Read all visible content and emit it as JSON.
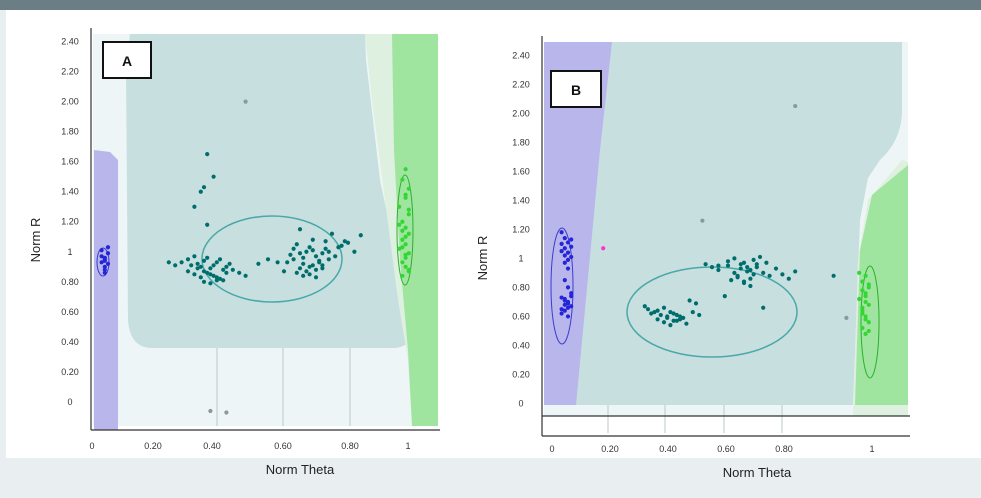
{
  "chart_data": [
    {
      "type": "scatter",
      "panel_label": "A",
      "xlabel": "Norm Theta",
      "ylabel": "Norm R",
      "xlim": [
        0,
        1.1
      ],
      "ylim": [
        -0.1,
        2.45
      ],
      "x_ticks": [
        "0",
        "0.20",
        "0.40",
        "0.60",
        "0.80",
        "1"
      ],
      "y_ticks": [
        "0",
        "0.20",
        "0.40",
        "0.60",
        "0.80",
        "1",
        "1.20",
        "1.40",
        "1.60",
        "1.80",
        "2.00",
        "2.20",
        "2.40"
      ],
      "series": [
        {
          "color": "#2424d8",
          "x": [
            0.03,
            0.04,
            0.05,
            0.04,
            0.03,
            0.05,
            0.04,
            0.04,
            0.03,
            0.05,
            0.04,
            0.04
          ],
          "y": [
            0.93,
            0.96,
            0.99,
            0.88,
            1.01,
            0.92,
            0.95,
            0.9,
            0.97,
            1.03,
            0.86,
            0.94
          ]
        },
        {
          "color": "#006d6d",
          "x": [
            0.36,
            0.38,
            0.34,
            0.35,
            0.32,
            0.36,
            0.28,
            0.3,
            0.32,
            0.33,
            0.34,
            0.35,
            0.36,
            0.37,
            0.38,
            0.39,
            0.4,
            0.41,
            0.42,
            0.43,
            0.3,
            0.32,
            0.34,
            0.36,
            0.38,
            0.4,
            0.42,
            0.44,
            0.31,
            0.33,
            0.35,
            0.37,
            0.39,
            0.41,
            0.35,
            0.37,
            0.39,
            0.24,
            0.26,
            0.46,
            0.48,
            0.52,
            0.55,
            0.58,
            0.6,
            0.62,
            0.63,
            0.64,
            0.65,
            0.66,
            0.67,
            0.68,
            0.69,
            0.7,
            0.71,
            0.72,
            0.73,
            0.74,
            0.66,
            0.68,
            0.7,
            0.72,
            0.64,
            0.66,
            0.68,
            0.7,
            0.72,
            0.74,
            0.76,
            0.78,
            0.8,
            0.84,
            0.61,
            0.63,
            0.65,
            0.67,
            0.69,
            0.71,
            0.65,
            0.69,
            0.73,
            0.75,
            0.77,
            0.79,
            0.82
          ],
          "y": [
            1.65,
            1.5,
            1.4,
            1.43,
            1.3,
            1.18,
            0.93,
            0.95,
            0.97,
            0.92,
            0.9,
            0.94,
            0.96,
            0.89,
            0.91,
            0.93,
            0.95,
            0.88,
            0.9,
            0.92,
            0.87,
            0.85,
            0.83,
            0.86,
            0.84,
            0.82,
            0.86,
            0.88,
            0.91,
            0.89,
            0.87,
            0.85,
            0.83,
            0.81,
            0.8,
            0.79,
            0.81,
            0.93,
            0.91,
            0.86,
            0.84,
            0.92,
            0.95,
            0.93,
            0.87,
            0.98,
            1.02,
            1.05,
            0.99,
            0.96,
            1.0,
            1.03,
            1.01,
            0.97,
            0.94,
            0.99,
            1.02,
            1.0,
            0.92,
            0.9,
            0.88,
            0.91,
            0.86,
            0.84,
            0.85,
            0.83,
            0.89,
            0.95,
            0.97,
            1.04,
            1.06,
            1.11,
            0.93,
            0.95,
            0.89,
            0.87,
            0.91,
            0.93,
            1.15,
            1.08,
            1.07,
            1.12,
            1.03,
            1.07,
            1.0
          ]
        },
        {
          "color": "#33d633",
          "x": [
            0.98,
            0.97,
            0.99,
            0.98,
            0.96,
            0.99,
            0.97,
            0.98,
            0.99,
            0.97,
            0.98,
            0.96,
            0.99,
            0.98,
            0.97,
            0.98,
            0.99,
            0.97,
            0.98,
            0.96,
            0.99,
            0.98,
            0.97,
            0.98,
            0.99,
            0.97
          ],
          "y": [
            1.55,
            1.48,
            1.42,
            1.36,
            1.3,
            1.25,
            1.2,
            1.16,
            1.12,
            1.08,
            1.05,
            1.02,
            0.99,
            0.96,
            0.93,
            0.9,
            0.87,
            0.84,
            1.1,
            1.18,
            1.28,
            1.38,
            1.03,
            0.98,
            0.88,
            1.14
          ]
        },
        {
          "color": "#8a9a9a",
          "x": [
            0.48,
            0.37,
            0.42
          ],
          "y": [
            2.0,
            -0.06,
            -0.07
          ]
        }
      ]
    },
    {
      "type": "scatter",
      "panel_label": "B",
      "xlabel": "Norm Theta",
      "ylabel": "Norm R",
      "xlim": [
        0,
        1.1
      ],
      "ylim": [
        -0.1,
        2.45
      ],
      "x_ticks": [
        "0",
        "0.20",
        "0.40",
        "0.60",
        "0.80",
        "1"
      ],
      "y_ticks": [
        "0",
        "0.20",
        "0.40",
        "0.60",
        "0.80",
        "1",
        "1.20",
        "1.40",
        "1.60",
        "1.80",
        "2.00",
        "2.20",
        "2.40"
      ],
      "series": [
        {
          "color": "#2424d8",
          "x": [
            0.03,
            0.04,
            0.05,
            0.06,
            0.03,
            0.04,
            0.05,
            0.06,
            0.03,
            0.04,
            0.05,
            0.06,
            0.04,
            0.05,
            0.03,
            0.04,
            0.05,
            0.06,
            0.03,
            0.04,
            0.05,
            0.04,
            0.05,
            0.06,
            0.03,
            0.04,
            0.05,
            0.04,
            0.05,
            0.06
          ],
          "y": [
            1.18,
            1.14,
            1.11,
            1.08,
            1.05,
            1.02,
            0.99,
            1.13,
            1.1,
            1.07,
            1.04,
            1.01,
            0.97,
            0.93,
            0.73,
            0.71,
            0.69,
            0.67,
            0.65,
            0.72,
            0.7,
            0.68,
            0.66,
            0.74,
            0.62,
            0.64,
            0.6,
            0.85,
            0.8,
            0.76
          ]
        },
        {
          "color": "#006d6d",
          "x": [
            0.3,
            0.32,
            0.34,
            0.36,
            0.38,
            0.4,
            0.31,
            0.33,
            0.35,
            0.37,
            0.39,
            0.41,
            0.33,
            0.35,
            0.37,
            0.39,
            0.36,
            0.38,
            0.4,
            0.42,
            0.29,
            0.44,
            0.46,
            0.43,
            0.45,
            0.52,
            0.55,
            0.57,
            0.58,
            0.59,
            0.6,
            0.61,
            0.62,
            0.63,
            0.64,
            0.56,
            0.58,
            0.6,
            0.62,
            0.64,
            0.66,
            0.68,
            0.7,
            0.55,
            0.57,
            0.59,
            0.61,
            0.63,
            0.65,
            0.67,
            0.6,
            0.62,
            0.48,
            0.5,
            0.72,
            0.74,
            0.76,
            0.54,
            0.66,
            0.88,
            0.52
          ],
          "y": [
            0.65,
            0.63,
            0.61,
            0.59,
            0.57,
            0.6,
            0.62,
            0.64,
            0.66,
            0.63,
            0.61,
            0.59,
            0.58,
            0.56,
            0.54,
            0.57,
            0.6,
            0.62,
            0.58,
            0.55,
            0.67,
            0.63,
            0.61,
            0.71,
            0.69,
            0.92,
            0.95,
            0.9,
            0.88,
            0.93,
            0.97,
            0.91,
            0.86,
            0.89,
            0.94,
            0.85,
            0.87,
            0.83,
            0.92,
            0.96,
            0.9,
            0.88,
            0.93,
            0.98,
            1.0,
            0.96,
            0.94,
            0.99,
            1.01,
            0.97,
            0.84,
            0.81,
            0.96,
            0.94,
            0.89,
            0.86,
            0.91,
            0.74,
            0.66,
            0.88,
            0.95
          ]
        },
        {
          "color": "#33d633",
          "x": [
            0.98,
            0.97,
            0.99,
            0.98,
            0.96,
            0.99,
            0.97,
            0.98,
            0.99,
            0.97,
            0.98,
            0.96,
            0.99,
            0.98,
            0.97,
            0.98,
            0.99,
            0.97,
            0.98,
            0.97
          ],
          "y": [
            0.88,
            0.84,
            0.8,
            0.76,
            0.72,
            0.68,
            0.64,
            0.6,
            0.56,
            0.52,
            0.48,
            0.9,
            0.82,
            0.74,
            0.66,
            0.58,
            0.5,
            0.78,
            0.7,
            0.62
          ]
        },
        {
          "color": "#ff33cc",
          "x": [
            0.16
          ],
          "y": [
            1.07
          ]
        },
        {
          "color": "#8a9a9a",
          "x": [
            0.76,
            0.47,
            0.92
          ],
          "y": [
            2.05,
            1.26,
            0.59
          ]
        }
      ]
    }
  ]
}
